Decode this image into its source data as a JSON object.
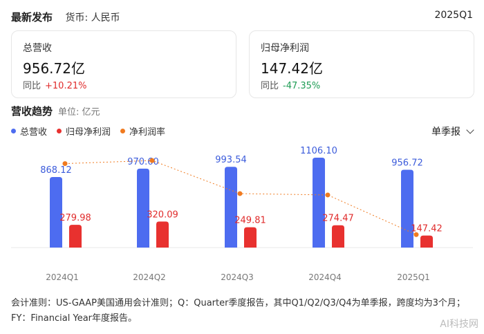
{
  "header": {
    "title": "最新发布",
    "currency": "货币: 人民币",
    "period": "2025Q1"
  },
  "cards": [
    {
      "label": "总营收",
      "value": "956.72亿",
      "yoy_label": "同比",
      "yoy": "+10.21%"
    },
    {
      "label": "归母净利润",
      "value": "147.42亿",
      "yoy_label": "同比",
      "yoy": "-47.35%"
    }
  ],
  "section": {
    "title": "营收趋势",
    "unit": "单位: 亿元"
  },
  "selector": {
    "label": "单季报"
  },
  "colors": {
    "revenue": "#4d6cf0",
    "profit": "#e8312f",
    "margin": "#f07a1f",
    "up": "#e02b2b",
    "down": "#1f9d55"
  },
  "chart_data": {
    "type": "bar",
    "categories": [
      "2024Q1",
      "2024Q2",
      "2024Q3",
      "2024Q4",
      "2025Q1"
    ],
    "series": [
      {
        "name": "总营收",
        "type": "bar",
        "values": [
          868.12,
          970.6,
          993.54,
          1106.1,
          956.72
        ],
        "labels": [
          "868.12",
          "970.60",
          "993.54",
          "1106.10",
          "956.72"
        ]
      },
      {
        "name": "归母净利润",
        "type": "bar",
        "values": [
          279.98,
          320.09,
          249.81,
          274.47,
          147.42
        ],
        "labels": [
          "279.98",
          "320.09",
          "249.81",
          "274.47",
          "147.42"
        ]
      },
      {
        "name": "净利润率",
        "type": "line",
        "values": [
          32.25,
          32.98,
          25.14,
          24.81,
          15.41
        ]
      }
    ],
    "legend": "top-left",
    "grid": false
  },
  "footnote": "会计准则：US-GAAP美国通用会计准则；Q：Quarter季度报告，其中Q1/Q2/Q3/Q4为单季报，跨度均为3个月；FY：Financial Year年度报告。",
  "watermark": "AI科技网"
}
